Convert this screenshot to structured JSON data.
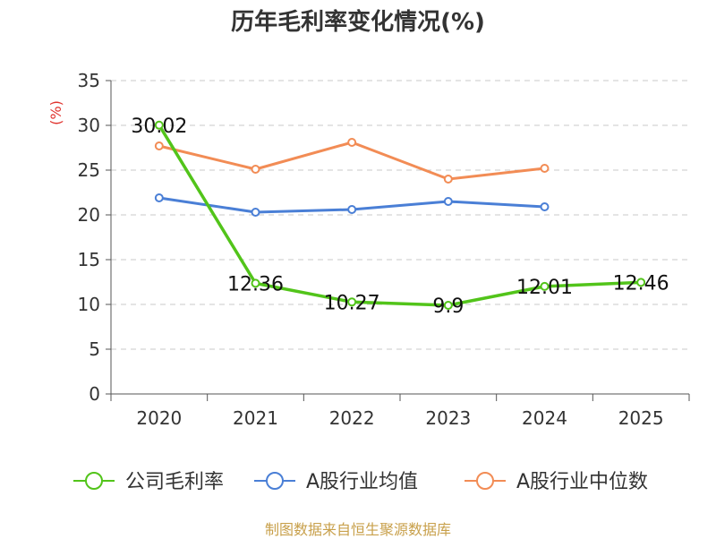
{
  "chart_data": {
    "type": "line",
    "title": "历年毛利率变化情况(%)",
    "ylabel": "(%)",
    "xlabel": "",
    "categories": [
      "2020",
      "2021",
      "2022",
      "2023",
      "2024",
      "2025"
    ],
    "ylim": [
      0,
      35
    ],
    "yticks": [
      0,
      5,
      10,
      15,
      20,
      25,
      30,
      35
    ],
    "grid": true,
    "legend_position": "bottom",
    "series": [
      {
        "name": "公司毛利率",
        "color": "#52c41a",
        "values": [
          30.02,
          12.36,
          10.27,
          9.9,
          12.01,
          12.46
        ],
        "labels": [
          "30.02",
          "12.36",
          "10.27",
          "9.9",
          "12.01",
          "12.46"
        ]
      },
      {
        "name": "A股行业均值",
        "color": "#4a7fd6",
        "values": [
          21.9,
          20.3,
          20.6,
          21.5,
          20.9,
          null
        ]
      },
      {
        "name": "A股行业中位数",
        "color": "#f28c55",
        "values": [
          27.7,
          25.1,
          28.1,
          24.0,
          25.2,
          null
        ]
      }
    ]
  },
  "source_note": "制图数据来自恒生聚源数据库"
}
